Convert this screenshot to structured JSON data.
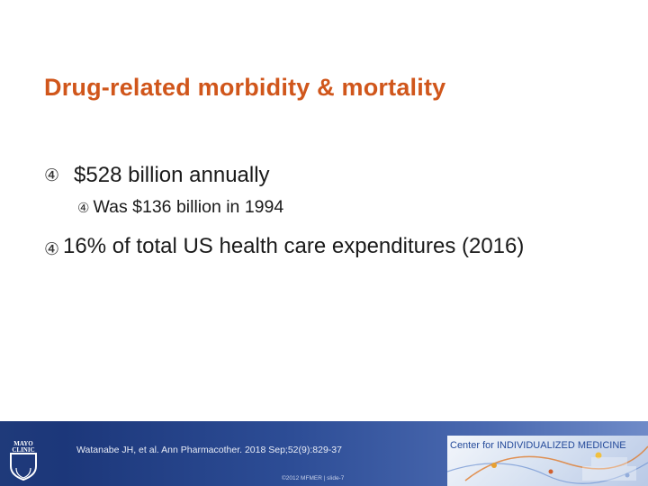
{
  "slide": {
    "title": "Drug-related morbidity & mortality",
    "bullets": [
      {
        "marker": "④",
        "text": "$528 billion annually"
      },
      {
        "marker": "④",
        "text": "Was $136 billion in 1994"
      },
      {
        "marker": "④",
        "text": "16% of total US health care expenditures (2016)"
      }
    ]
  },
  "footer": {
    "citation": "Watanabe JH, et al. Ann Pharmacother. 2018 Sep;52(9):829-37",
    "copyright": "©2012 MFMER | slide-7",
    "center_label": "Center for INDIVIDUALIZED MEDICINE",
    "logo_text": [
      "MAYO",
      "CLINIC"
    ]
  },
  "colors": {
    "title": "#d0561b",
    "footer_bar": "#1f3a7a",
    "center_label": "#244a9a"
  }
}
